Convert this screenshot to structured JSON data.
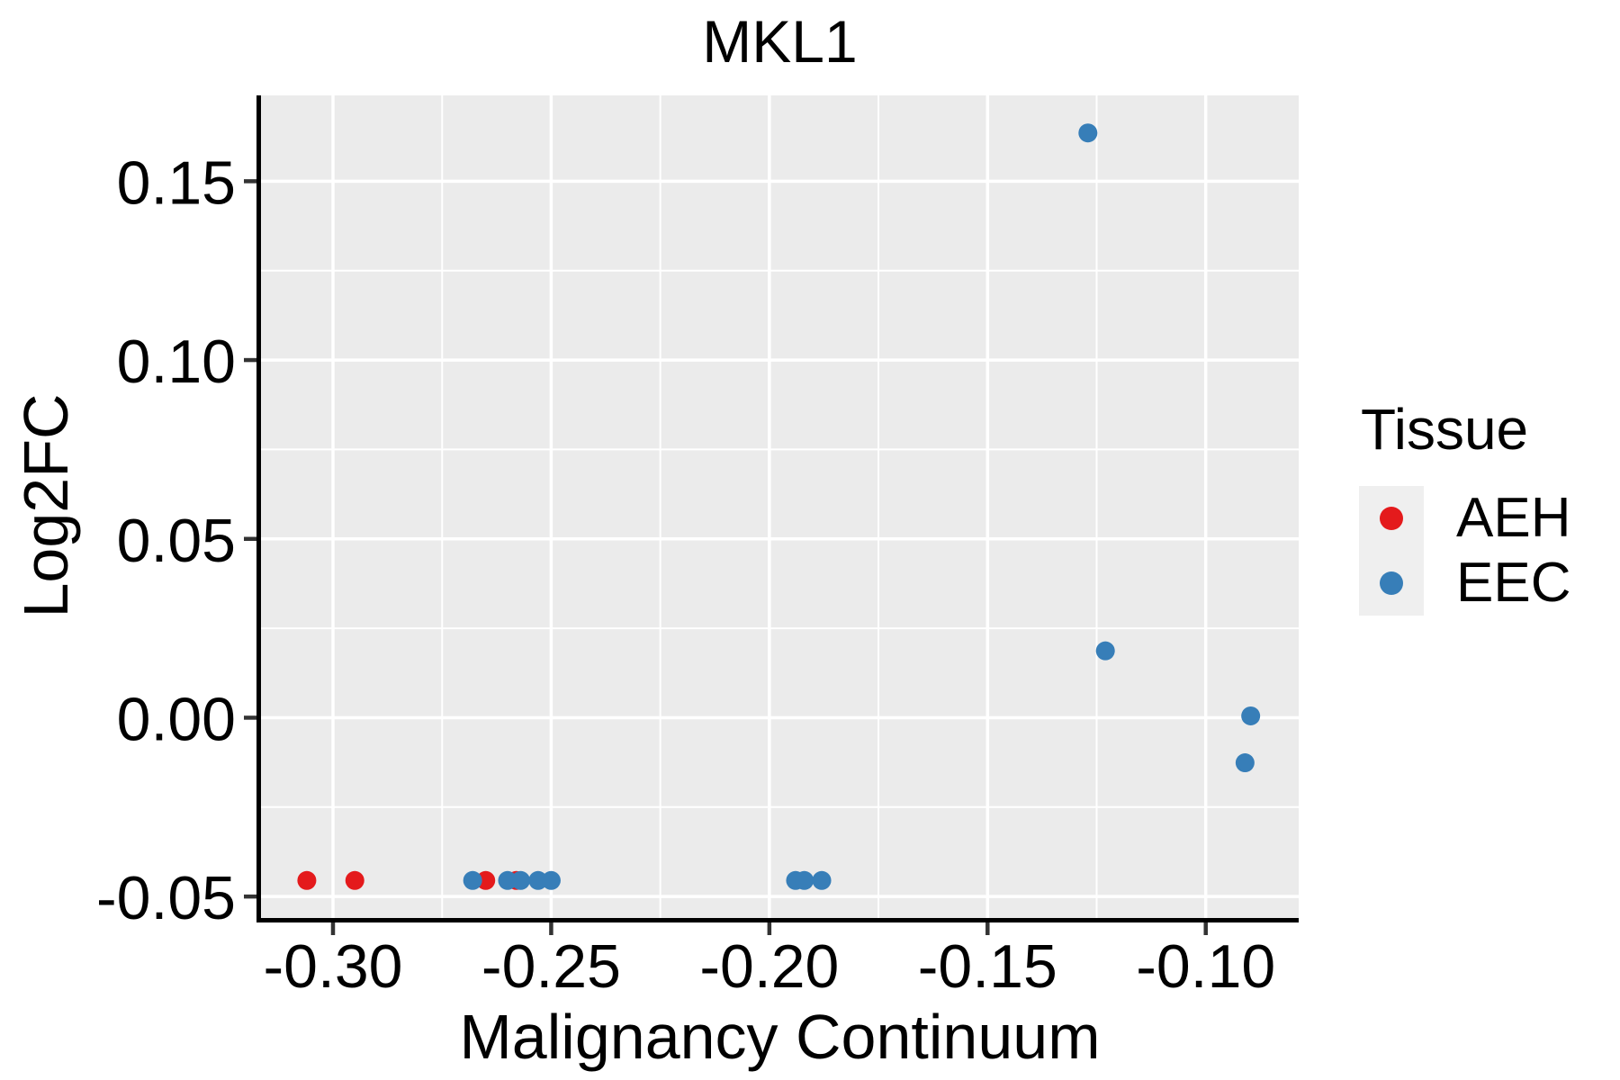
{
  "chart_data": {
    "type": "scatter",
    "title": "MKL1",
    "xlabel": "Malignancy Continuum",
    "ylabel": "Log2FC",
    "xlim": [
      -0.3165,
      -0.0787
    ],
    "ylim": [
      -0.056,
      0.174
    ],
    "x_ticks": [
      -0.3,
      -0.25,
      -0.2,
      -0.15,
      -0.1
    ],
    "x_tick_labels": [
      "-0.30",
      "-0.25",
      "-0.20",
      "-0.15",
      "-0.10"
    ],
    "y_ticks": [
      0.15,
      0.1,
      0.05,
      0.0,
      -0.05
    ],
    "y_tick_labels": [
      "0.15",
      "0.10",
      "0.05",
      "0.00",
      "-0.05"
    ],
    "x_minor_ticks": [
      -0.275,
      -0.225,
      -0.175,
      -0.125
    ],
    "y_minor_ticks": [
      0.125,
      0.075,
      0.025,
      -0.025
    ],
    "grid": true,
    "legend": {
      "title": "Tissue",
      "position": "right",
      "entries": [
        {
          "label": "AEH",
          "color": "#E41A1C"
        },
        {
          "label": "EEC",
          "color": "#377EB8"
        }
      ]
    },
    "series": [
      {
        "name": "AEH",
        "color": "#E41A1C",
        "points": [
          [
            -0.306,
            -0.0455
          ],
          [
            -0.295,
            -0.0455
          ],
          [
            -0.265,
            -0.0455
          ],
          [
            -0.258,
            -0.0455
          ]
        ]
      },
      {
        "name": "EEC",
        "color": "#377EB8",
        "points": [
          [
            -0.268,
            -0.0455
          ],
          [
            -0.26,
            -0.0455
          ],
          [
            -0.257,
            -0.0455
          ],
          [
            -0.253,
            -0.0455
          ],
          [
            -0.25,
            -0.0455
          ],
          [
            -0.194,
            -0.0455
          ],
          [
            -0.192,
            -0.0455
          ],
          [
            -0.188,
            -0.0455
          ],
          [
            -0.127,
            0.1635
          ],
          [
            -0.123,
            0.0187
          ],
          [
            -0.091,
            -0.0126
          ],
          [
            -0.0897,
            0.0005
          ]
        ]
      }
    ],
    "colors": {
      "panel_background": "#EBEBEB",
      "grid": "#FFFFFF",
      "axis_line": "#000000",
      "tick_mark": "#333333",
      "text": "#000000"
    }
  }
}
